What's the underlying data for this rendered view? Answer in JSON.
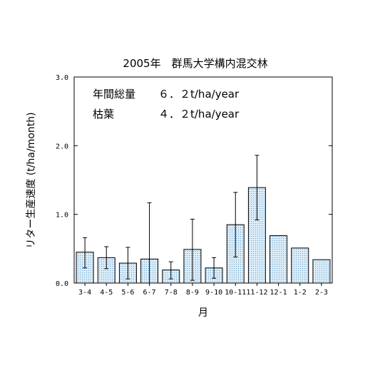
{
  "chart_data": {
    "type": "bar",
    "title": "2005年　群馬大学構内混交林",
    "xlabel": "月",
    "ylabel": "リター生産速度 (t/ha/month)",
    "ylim": [
      0,
      3
    ],
    "yticks": [
      "0.0",
      "1.0",
      "2.0",
      "3.0"
    ],
    "categories": [
      "3-4",
      "4-5",
      "5-6",
      "6-7",
      "7-8",
      "8-9",
      "9-10",
      "10-11",
      "11-12",
      "12-1",
      "1-2",
      "2-3"
    ],
    "values": [
      0.45,
      0.37,
      0.29,
      0.35,
      0.19,
      0.49,
      0.22,
      0.85,
      1.39,
      0.69,
      0.51,
      0.34
    ],
    "error_high": [
      0.66,
      0.53,
      0.52,
      1.17,
      0.31,
      0.93,
      0.37,
      1.32,
      1.86,
      null,
      null,
      null
    ],
    "error_low": [
      0.22,
      0.21,
      0.06,
      0.0,
      0.06,
      0.04,
      0.07,
      0.38,
      0.92,
      null,
      null,
      null
    ],
    "annotations": [
      {
        "label": "年間総量",
        "value": "６．２t/ha/year"
      },
      {
        "label": "枯葉",
        "value": "４．２t/ha/year"
      }
    ],
    "grid": false,
    "bar_color": "#cfe6f5"
  }
}
